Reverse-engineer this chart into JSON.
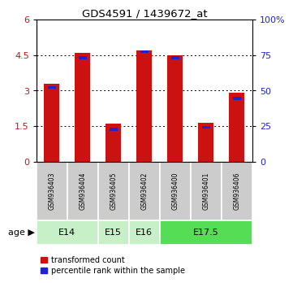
{
  "title": "GDS4591 / 1439672_at",
  "samples": [
    "GSM936403",
    "GSM936404",
    "GSM936405",
    "GSM936402",
    "GSM936400",
    "GSM936401",
    "GSM936406"
  ],
  "red_values": [
    3.3,
    4.6,
    1.6,
    4.7,
    4.5,
    1.65,
    2.9
  ],
  "blue_bottoms": [
    3.08,
    4.3,
    1.3,
    4.58,
    4.33,
    1.39,
    2.6
  ],
  "blue_heights": [
    0.12,
    0.15,
    0.15,
    0.12,
    0.12,
    0.13,
    0.15
  ],
  "age_groups": [
    {
      "label": "E14",
      "start": 0,
      "end": 2,
      "color": "#c8f0c8"
    },
    {
      "label": "E15",
      "start": 2,
      "end": 3,
      "color": "#c8f0c8"
    },
    {
      "label": "E16",
      "start": 3,
      "end": 4,
      "color": "#c8f0c8"
    },
    {
      "label": "E17.5",
      "start": 4,
      "end": 7,
      "color": "#55dd55"
    }
  ],
  "ylim_left": [
    0,
    6
  ],
  "ylim_right": [
    0,
    100
  ],
  "yticks_left": [
    0,
    1.5,
    3,
    4.5,
    6
  ],
  "yticks_right": [
    0,
    25,
    50,
    75,
    100
  ],
  "ytick_labels_right": [
    "0",
    "25",
    "50",
    "75",
    "100%"
  ],
  "bar_color_red": "#cc1111",
  "bar_color_blue": "#2222cc",
  "bar_width": 0.5,
  "sample_bg_color": "#cccccc",
  "left_tick_color": "#cc1111",
  "right_tick_color": "#2222cc",
  "legend_red_label": "transformed count",
  "legend_blue_label": "percentile rank within the sample",
  "age_label": "age",
  "age_arrow": "▶"
}
